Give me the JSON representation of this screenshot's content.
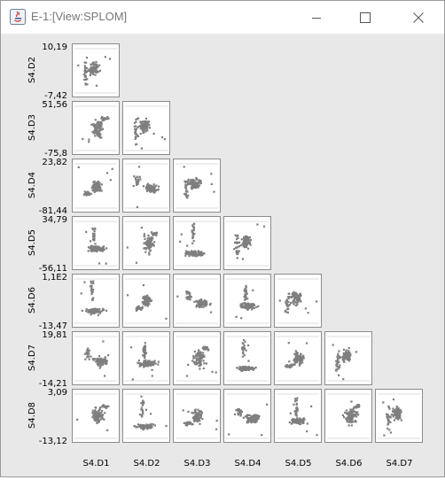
{
  "window": {
    "title": "E-1:[View:SPLOM]",
    "controls": [
      "minimize-icon",
      "maximize-icon",
      "close-icon"
    ]
  },
  "splom": {
    "variables": [
      "S4.D1",
      "S4.D2",
      "S4.D3",
      "S4.D4",
      "S4.D5",
      "S4.D6",
      "S4.D7",
      "S4.D8"
    ],
    "row_variables": [
      "S4.D2",
      "S4.D3",
      "S4.D4",
      "S4.D5",
      "S4.D6",
      "S4.D7",
      "S4.D8"
    ],
    "column_variables": [
      "S4.D1",
      "S4.D2",
      "S4.D3",
      "S4.D4",
      "S4.D5",
      "S4.D6",
      "S4.D7"
    ],
    "row_axis_max": [
      "10,19",
      "51,56",
      "23,82",
      "34,79",
      "1,1E2",
      "19,81",
      "3,09"
    ],
    "row_axis_min": [
      "-7,42",
      "-75,8",
      "-81,44",
      "-56,11",
      "-13,47",
      "-14,21",
      "-13,12"
    ],
    "point_color": "#7f7f7f"
  },
  "chart_data": {
    "type": "scatter",
    "layout": "lower-triangular scatterplot matrix",
    "variables": [
      "S4.D1",
      "S4.D2",
      "S4.D3",
      "S4.D4",
      "S4.D5",
      "S4.D6",
      "S4.D7",
      "S4.D8"
    ],
    "ranges": {
      "S4.D2": [
        -7.42,
        10.19
      ],
      "S4.D3": [
        -75.8,
        51.56
      ],
      "S4.D4": [
        -81.44,
        23.82
      ],
      "S4.D5": [
        -56.11,
        34.79
      ],
      "S4.D6": [
        -13.47,
        110
      ],
      "S4.D7": [
        -14.21,
        19.81
      ],
      "S4.D8": [
        -13.12,
        3.09
      ]
    },
    "grid": false,
    "legend": "none"
  }
}
